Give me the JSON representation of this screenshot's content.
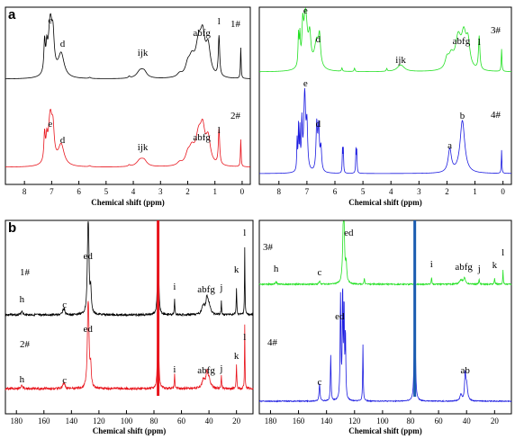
{
  "colors": {
    "black": "#000000",
    "red": "#e8141c",
    "green": "#22e022",
    "blue": "#1a1ae0",
    "solvent_red": "#e8141c",
    "solvent_blue": "#1a5cb0"
  },
  "chart_data": [
    {
      "type": "line",
      "panel_label": "a",
      "xlabel": "Chemical shift (ppm)",
      "x_ticks": [
        "8",
        "7",
        "6",
        "5",
        "4",
        "3",
        "2",
        "1",
        "0"
      ],
      "xlim": [
        8.7,
        -0.3
      ],
      "x_reversed": true,
      "series": [
        {
          "name": "1#",
          "color": "black",
          "peaks": [
            {
              "label": "e",
              "x": 7.05
            },
            {
              "label": "d",
              "x": 6.6
            },
            {
              "label": "ijk",
              "x": 3.65
            },
            {
              "label": "abfg",
              "x": 1.55
            },
            {
              "label": "l",
              "x": 0.85
            }
          ]
        },
        {
          "name": "2#",
          "color": "red",
          "peaks": [
            {
              "label": "e",
              "x": 7.05
            },
            {
              "label": "d",
              "x": 6.6
            },
            {
              "label": "ijk",
              "x": 3.65
            },
            {
              "label": "abfg",
              "x": 1.55
            },
            {
              "label": "l",
              "x": 0.85
            }
          ]
        }
      ]
    },
    {
      "type": "line",
      "panel_label": "",
      "xlabel": "Chemical shift (ppm)",
      "x_ticks": [
        "8",
        "7",
        "6",
        "5",
        "4",
        "3",
        "2",
        "1",
        "0"
      ],
      "xlim": [
        8.7,
        -0.3
      ],
      "x_reversed": true,
      "series": [
        {
          "name": "3#",
          "color": "green",
          "peaks": [
            {
              "label": "e",
              "x": 7.05
            },
            {
              "label": "d",
              "x": 6.6
            },
            {
              "label": "ijk",
              "x": 3.65
            },
            {
              "label": "abfg",
              "x": 1.55
            },
            {
              "label": "l",
              "x": 0.85
            }
          ]
        },
        {
          "name": "4#",
          "color": "blue",
          "peaks": [
            {
              "label": "e",
              "x": 7.05
            },
            {
              "label": "d",
              "x": 6.6
            },
            {
              "label": "a",
              "x": 1.9
            },
            {
              "label": "b",
              "x": 1.45
            }
          ]
        }
      ]
    },
    {
      "type": "line",
      "panel_label": "b",
      "xlabel": "Chemical shift (ppm)",
      "x_ticks": [
        "180",
        "160",
        "140",
        "120",
        "100",
        "80",
        "60",
        "40",
        "20"
      ],
      "xlim": [
        188,
        8
      ],
      "x_reversed": true,
      "series": [
        {
          "name": "1#",
          "color": "black",
          "peaks": [
            {
              "label": "h",
              "x": 176
            },
            {
              "label": "c",
              "x": 145
            },
            {
              "label": "ed",
              "x": 128
            },
            {
              "label": "i",
              "x": 65
            },
            {
              "label": "abfg",
              "x": 42
            },
            {
              "label": "j",
              "x": 31
            },
            {
              "label": "k",
              "x": 20
            },
            {
              "label": "l",
              "x": 14
            }
          ]
        },
        {
          "name": "2#",
          "color": "red",
          "peaks": [
            {
              "label": "h",
              "x": 176
            },
            {
              "label": "c",
              "x": 145
            },
            {
              "label": "ed",
              "x": 128
            },
            {
              "label": "i",
              "x": 65
            },
            {
              "label": "abfg",
              "x": 42
            },
            {
              "label": "j",
              "x": 31
            },
            {
              "label": "k",
              "x": 20
            },
            {
              "label": "l",
              "x": 14
            }
          ]
        }
      ]
    },
    {
      "type": "line",
      "panel_label": "",
      "xlabel": "Chemical shift (ppm)",
      "x_ticks": [
        "180",
        "160",
        "140",
        "120",
        "100",
        "80",
        "60",
        "40",
        "20"
      ],
      "xlim": [
        188,
        8
      ],
      "x_reversed": true,
      "series": [
        {
          "name": "3#",
          "color": "green",
          "peaks": [
            {
              "label": "h",
              "x": 176
            },
            {
              "label": "c",
              "x": 145
            },
            {
              "label": "ed",
              "x": 128
            },
            {
              "label": "i",
              "x": 65
            },
            {
              "label": "abfg",
              "x": 42
            },
            {
              "label": "j",
              "x": 31
            },
            {
              "label": "k",
              "x": 20
            },
            {
              "label": "l",
              "x": 14
            }
          ]
        },
        {
          "name": "4#",
          "color": "blue",
          "peaks": [
            {
              "label": "c",
              "x": 145
            },
            {
              "label": "ed",
              "x": 128
            },
            {
              "label": "ab",
              "x": 41
            }
          ]
        }
      ]
    }
  ]
}
